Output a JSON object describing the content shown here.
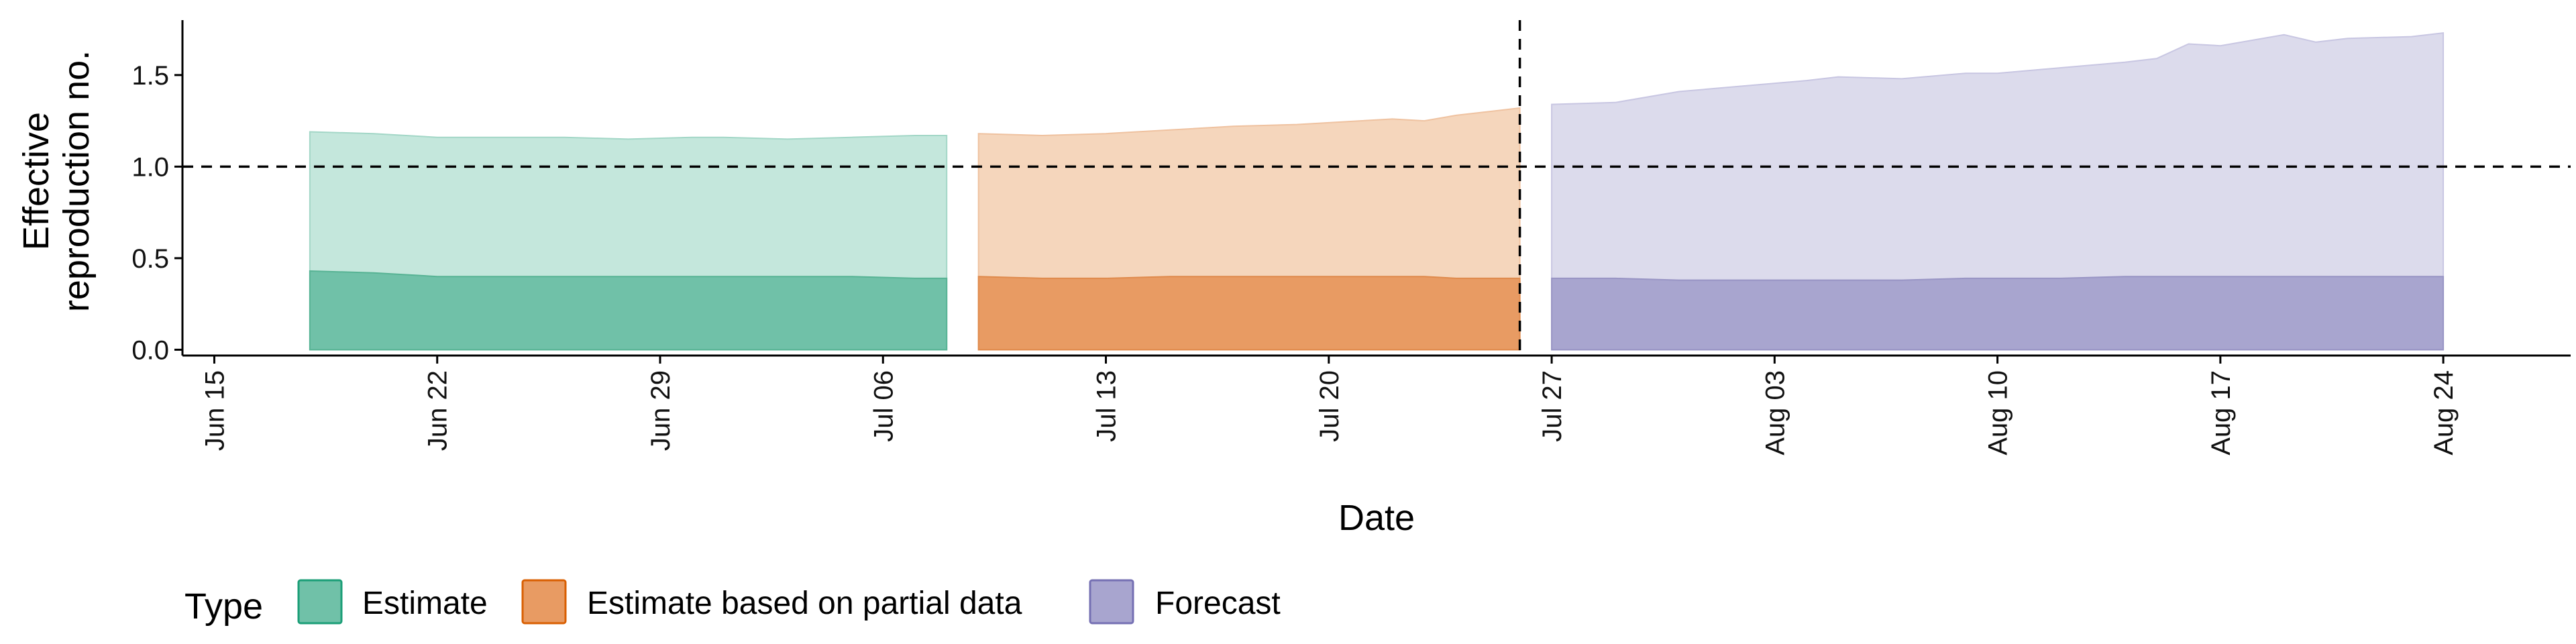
{
  "chart_data": {
    "type": "area",
    "title": "",
    "xlabel": "Date",
    "ylabel_lines": [
      "Effective",
      "reproduction no."
    ],
    "x_axis": {
      "start": "2020-06-14",
      "end": "2020-08-28",
      "ticks": [
        {
          "date": "2020-06-15",
          "label": "Jun 15"
        },
        {
          "date": "2020-06-22",
          "label": "Jun 22"
        },
        {
          "date": "2020-06-29",
          "label": "Jun 29"
        },
        {
          "date": "2020-07-06",
          "label": "Jul 06"
        },
        {
          "date": "2020-07-13",
          "label": "Jul 13"
        },
        {
          "date": "2020-07-20",
          "label": "Jul 20"
        },
        {
          "date": "2020-07-27",
          "label": "Jul 27"
        },
        {
          "date": "2020-08-03",
          "label": "Aug 03"
        },
        {
          "date": "2020-08-10",
          "label": "Aug 10"
        },
        {
          "date": "2020-08-17",
          "label": "Aug 17"
        },
        {
          "date": "2020-08-24",
          "label": "Aug 24"
        }
      ]
    },
    "y_axis": {
      "ylim": [
        -0.05,
        1.8
      ],
      "ticks": [
        {
          "value": 0.0,
          "label": "0.0"
        },
        {
          "value": 0.5,
          "label": "0.5"
        },
        {
          "value": 1.0,
          "label": "1.0"
        },
        {
          "value": 1.5,
          "label": "1.5"
        }
      ]
    },
    "reference_lines": {
      "horizontal_y": 1.0,
      "vertical_date": "2020-07-26"
    },
    "legend": {
      "title": "Type",
      "position": "bottom-left",
      "entries": [
        {
          "label": "Estimate",
          "fill": "#70c1a8",
          "stroke": "#1b9e77"
        },
        {
          "label": "Estimate based on partial data",
          "fill": "#e89b63",
          "stroke": "#d95f02"
        },
        {
          "label": "Forecast",
          "fill": "#a8a5cf",
          "stroke": "#7570b3"
        }
      ]
    },
    "series": [
      {
        "name": "Estimate",
        "outer_fill": "#c4e7dc",
        "inner_fill": "#70c1a8",
        "outer_stroke": "#a3d7c7",
        "inner_stroke": "#57b394",
        "x": [
          "2020-06-18",
          "2020-06-20",
          "2020-06-22",
          "2020-06-24",
          "2020-06-26",
          "2020-06-28",
          "2020-06-30",
          "2020-07-01",
          "2020-07-03",
          "2020-07-05",
          "2020-07-07",
          "2020-07-08"
        ],
        "outer_upper": [
          1.19,
          1.18,
          1.16,
          1.16,
          1.16,
          1.15,
          1.16,
          1.16,
          1.15,
          1.16,
          1.17,
          1.17
        ],
        "outer_lower": [
          0.0,
          0.0,
          0.0,
          0.0,
          0.0,
          0.0,
          0.0,
          0.0,
          0.0,
          0.0,
          0.0,
          0.0
        ],
        "inner_upper": [
          0.43,
          0.42,
          0.4,
          0.4,
          0.4,
          0.4,
          0.4,
          0.4,
          0.4,
          0.4,
          0.39,
          0.39
        ],
        "inner_lower": [
          0.0,
          0.0,
          0.0,
          0.0,
          0.0,
          0.0,
          0.0,
          0.0,
          0.0,
          0.0,
          0.0,
          0.0
        ]
      },
      {
        "name": "Estimate based on partial data",
        "outer_fill": "#f5d6bc",
        "inner_fill": "#e89b63",
        "outer_stroke": "#efc2a0",
        "inner_stroke": "#df8a4c",
        "x": [
          "2020-07-09",
          "2020-07-11",
          "2020-07-13",
          "2020-07-15",
          "2020-07-17",
          "2020-07-19",
          "2020-07-21",
          "2020-07-22",
          "2020-07-23",
          "2020-07-24",
          "2020-07-25",
          "2020-07-26"
        ],
        "outer_upper": [
          1.18,
          1.17,
          1.18,
          1.2,
          1.22,
          1.23,
          1.25,
          1.26,
          1.25,
          1.28,
          1.3,
          1.32
        ],
        "outer_lower": [
          0.0,
          0.0,
          0.0,
          0.0,
          0.0,
          0.0,
          0.0,
          0.0,
          0.0,
          0.0,
          0.0,
          0.0
        ],
        "inner_upper": [
          0.4,
          0.39,
          0.39,
          0.4,
          0.4,
          0.4,
          0.4,
          0.4,
          0.4,
          0.39,
          0.39,
          0.39
        ],
        "inner_lower": [
          0.0,
          0.0,
          0.0,
          0.0,
          0.0,
          0.0,
          0.0,
          0.0,
          0.0,
          0.0,
          0.0,
          0.0
        ]
      },
      {
        "name": "Forecast",
        "outer_fill": "#dcdbec",
        "inner_fill": "#a8a5cf",
        "outer_stroke": "#c8c6e2",
        "inner_stroke": "#9894c4",
        "x": [
          "2020-07-27",
          "2020-07-29",
          "2020-07-31",
          "2020-08-02",
          "2020-08-04",
          "2020-08-05",
          "2020-08-07",
          "2020-08-09",
          "2020-08-10",
          "2020-08-12",
          "2020-08-14",
          "2020-08-15",
          "2020-08-16",
          "2020-08-17",
          "2020-08-19",
          "2020-08-20",
          "2020-08-21",
          "2020-08-23",
          "2020-08-24"
        ],
        "outer_upper": [
          1.34,
          1.35,
          1.41,
          1.44,
          1.47,
          1.49,
          1.48,
          1.51,
          1.51,
          1.54,
          1.57,
          1.59,
          1.67,
          1.66,
          1.72,
          1.68,
          1.7,
          1.71,
          1.73
        ],
        "outer_lower": [
          0.0,
          0.0,
          0.0,
          0.0,
          0.0,
          0.0,
          0.0,
          0.0,
          0.0,
          0.0,
          0.0,
          0.0,
          0.0,
          0.0,
          0.0,
          0.0,
          0.0,
          0.0,
          0.0
        ],
        "inner_upper": [
          0.39,
          0.39,
          0.38,
          0.38,
          0.38,
          0.38,
          0.38,
          0.39,
          0.39,
          0.39,
          0.4,
          0.4,
          0.4,
          0.4,
          0.4,
          0.4,
          0.4,
          0.4,
          0.4
        ],
        "inner_lower": [
          0.0,
          0.0,
          0.0,
          0.0,
          0.0,
          0.0,
          0.0,
          0.0,
          0.0,
          0.0,
          0.0,
          0.0,
          0.0,
          0.0,
          0.0,
          0.0,
          0.0,
          0.0,
          0.0
        ]
      }
    ]
  }
}
